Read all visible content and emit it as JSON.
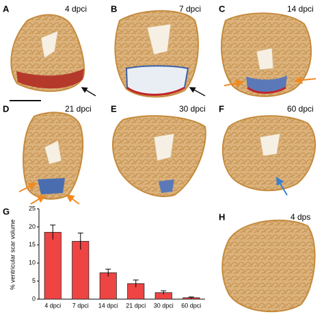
{
  "panels": [
    {
      "letter": "A",
      "label": "4 dpci"
    },
    {
      "letter": "B",
      "label": "7 dpci"
    },
    {
      "letter": "C",
      "label": "14 dpci"
    },
    {
      "letter": "D",
      "label": "21 dpci"
    },
    {
      "letter": "E",
      "label": "30 dpci"
    },
    {
      "letter": "F",
      "label": "60 dpci"
    },
    {
      "letter": "G"
    },
    {
      "letter": "H",
      "label": "4 dps"
    }
  ],
  "chart_data": {
    "type": "bar",
    "y_label": "% ventricular scar volume",
    "categories": [
      "4 dpci",
      "7 dpci",
      "14 dpci",
      "21 dpci",
      "30 dpci",
      "60 dpci"
    ],
    "values": [
      18.5,
      16,
      7.3,
      4.3,
      1.8,
      0.4
    ],
    "errors": [
      2,
      2.3,
      1,
      1,
      0.5,
      0.2
    ],
    "color": "#ee4444",
    "ylim": [
      0,
      25
    ],
    "yticks": [
      0,
      5,
      10,
      15,
      20,
      25
    ]
  }
}
